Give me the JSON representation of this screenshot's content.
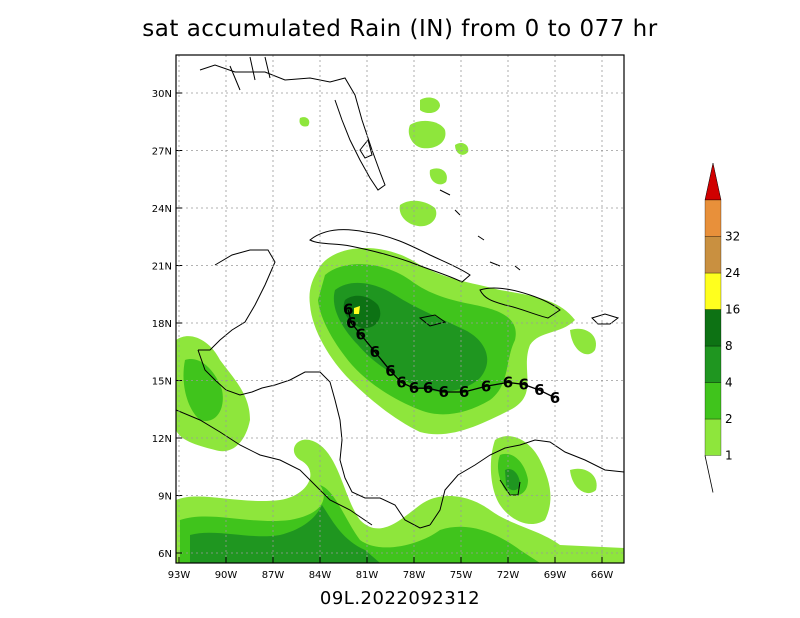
{
  "title": "sat accumulated Rain (IN) from 0 to 077 hr",
  "footer": "09L.2022092312",
  "map": {
    "lat_labels": [
      "30N",
      "27N",
      "24N",
      "21N",
      "18N",
      "15N",
      "12N",
      "9N",
      "6N"
    ],
    "lon_labels": [
      "93W",
      "90W",
      "87W",
      "84W",
      "81W",
      "78W",
      "75W",
      "72W",
      "69W",
      "66W"
    ]
  },
  "legend": {
    "labels": [
      "1",
      "2",
      "4",
      "8",
      "16",
      "24",
      "32"
    ],
    "colors": [
      "#8ee63c",
      "#40c41c",
      "#1f9620",
      "#0d7214",
      "#ffff1e",
      "#c99040",
      "#e8903a",
      "#d00000"
    ]
  },
  "track": {
    "storm_id": "09L",
    "symbol": "6",
    "points": [
      {
        "lon": -69.0,
        "lat": 14.1
      },
      {
        "lon": -70.0,
        "lat": 14.5
      },
      {
        "lon": -71.0,
        "lat": 14.8
      },
      {
        "lon": -72.0,
        "lat": 14.9
      },
      {
        "lon": -73.4,
        "lat": 14.7
      },
      {
        "lon": -74.8,
        "lat": 14.4
      },
      {
        "lon": -76.1,
        "lat": 14.4
      },
      {
        "lon": -77.1,
        "lat": 14.6
      },
      {
        "lon": -78.0,
        "lat": 14.6
      },
      {
        "lon": -78.8,
        "lat": 14.9
      },
      {
        "lon": -79.5,
        "lat": 15.5
      },
      {
        "lon": -80.5,
        "lat": 16.5
      },
      {
        "lon": -81.4,
        "lat": 17.4
      },
      {
        "lon": -82.0,
        "lat": 18.0
      },
      {
        "lon": -82.2,
        "lat": 18.7
      }
    ]
  }
}
